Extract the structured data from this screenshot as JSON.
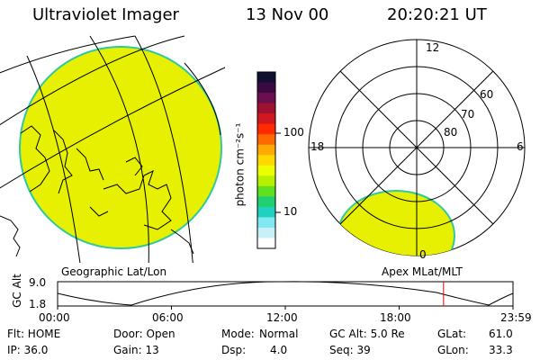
{
  "header": {
    "title": "Ultraviolet Imager",
    "date": "13 Nov 00",
    "time": "20:20:21 UT"
  },
  "colorbar": {
    "unit_label": "photon cm⁻²s⁻¹",
    "ticks": [
      "100",
      "10"
    ],
    "colors": [
      "#101030",
      "#3a0a40",
      "#6a1050",
      "#a01030",
      "#d01820",
      "#ff2a00",
      "#ff6a00",
      "#ffaa00",
      "#ffd800",
      "#eaff00",
      "#b8f000",
      "#60e020",
      "#20d070",
      "#20d0c0",
      "#80e8f0",
      "#c8f0f8",
      "#ffffff"
    ]
  },
  "left_panel": {
    "caption": "Geographic Lat/Lon",
    "fill_color": "#e6f000",
    "edge_color": "#30c8a0"
  },
  "polar_panel": {
    "caption": "Apex MLat/MLT",
    "lat_labels": [
      "80",
      "70",
      "60"
    ],
    "mlt_labels": {
      "top": "12",
      "left": "18",
      "right": "6",
      "bottom": "0"
    }
  },
  "timeline": {
    "ylabel": "GC Alt",
    "ytick_top": "9.0",
    "ytick_bottom": "1.8",
    "xticks": [
      "00:00",
      "06:00",
      "12:00",
      "18:00",
      "23:59"
    ],
    "marker_color": "#e00000",
    "marker_fraction": 0.8475
  },
  "status": {
    "flt": "Flt: HOME",
    "ip": "IP: 36.0",
    "door": "Door: Open",
    "gain": "Gain: 13",
    "mode_label": "Mode:",
    "mode": "Normal",
    "dsp_label": "Dsp:",
    "dsp": "4.0",
    "gcalt": "GC Alt: 5.0 Re",
    "seq": "Seq: 39",
    "glat_label": "GLat:",
    "glat": "61.0",
    "glon_label": "GLon:",
    "glon": "33.3"
  }
}
